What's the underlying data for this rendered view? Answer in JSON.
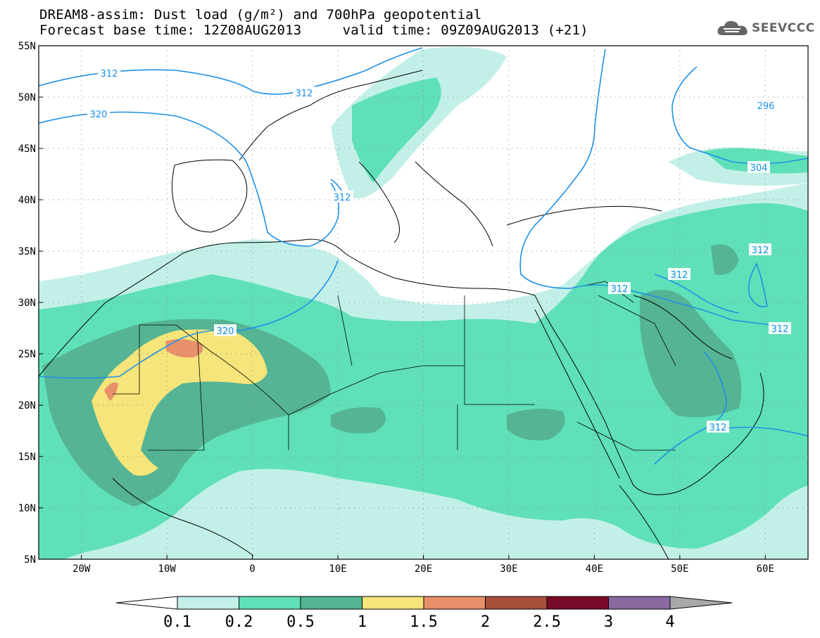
{
  "title": {
    "line1": "DREAM8-assim: Dust load (g/m²) and 700hPa geopotential",
    "line2": "Forecast base time: 12Z08AUG2013     valid time: 09Z09AUG2013 (+21)"
  },
  "logo": {
    "text": "SEEVCCC",
    "icon": "cloud-icon"
  },
  "map": {
    "lon_labels": [
      "20W",
      "10W",
      "0",
      "10E",
      "20E",
      "30E",
      "40E",
      "50E",
      "60E"
    ],
    "lat_labels": [
      "55N",
      "50N",
      "45N",
      "40N",
      "35N",
      "30N",
      "25N",
      "20N",
      "15N",
      "10N",
      "5N"
    ],
    "contour_color": "#1e90e6",
    "contour_labels": [
      "312",
      "312",
      "320",
      "312",
      "320",
      "312",
      "312",
      "312",
      "312",
      "312",
      "296",
      "304"
    ]
  },
  "legend": {
    "tick_labels": [
      "0.1",
      "0.2",
      "0.5",
      "1",
      "1.5",
      "2",
      "2.5",
      "3",
      "4"
    ],
    "colors": [
      "#ffffff",
      "#c2f0e8",
      "#5fe0b8",
      "#55b494",
      "#f5e57a",
      "#e8906a",
      "#a8503a",
      "#7a0a2a",
      "#8a6aa0",
      "#a8a8a8"
    ]
  }
}
